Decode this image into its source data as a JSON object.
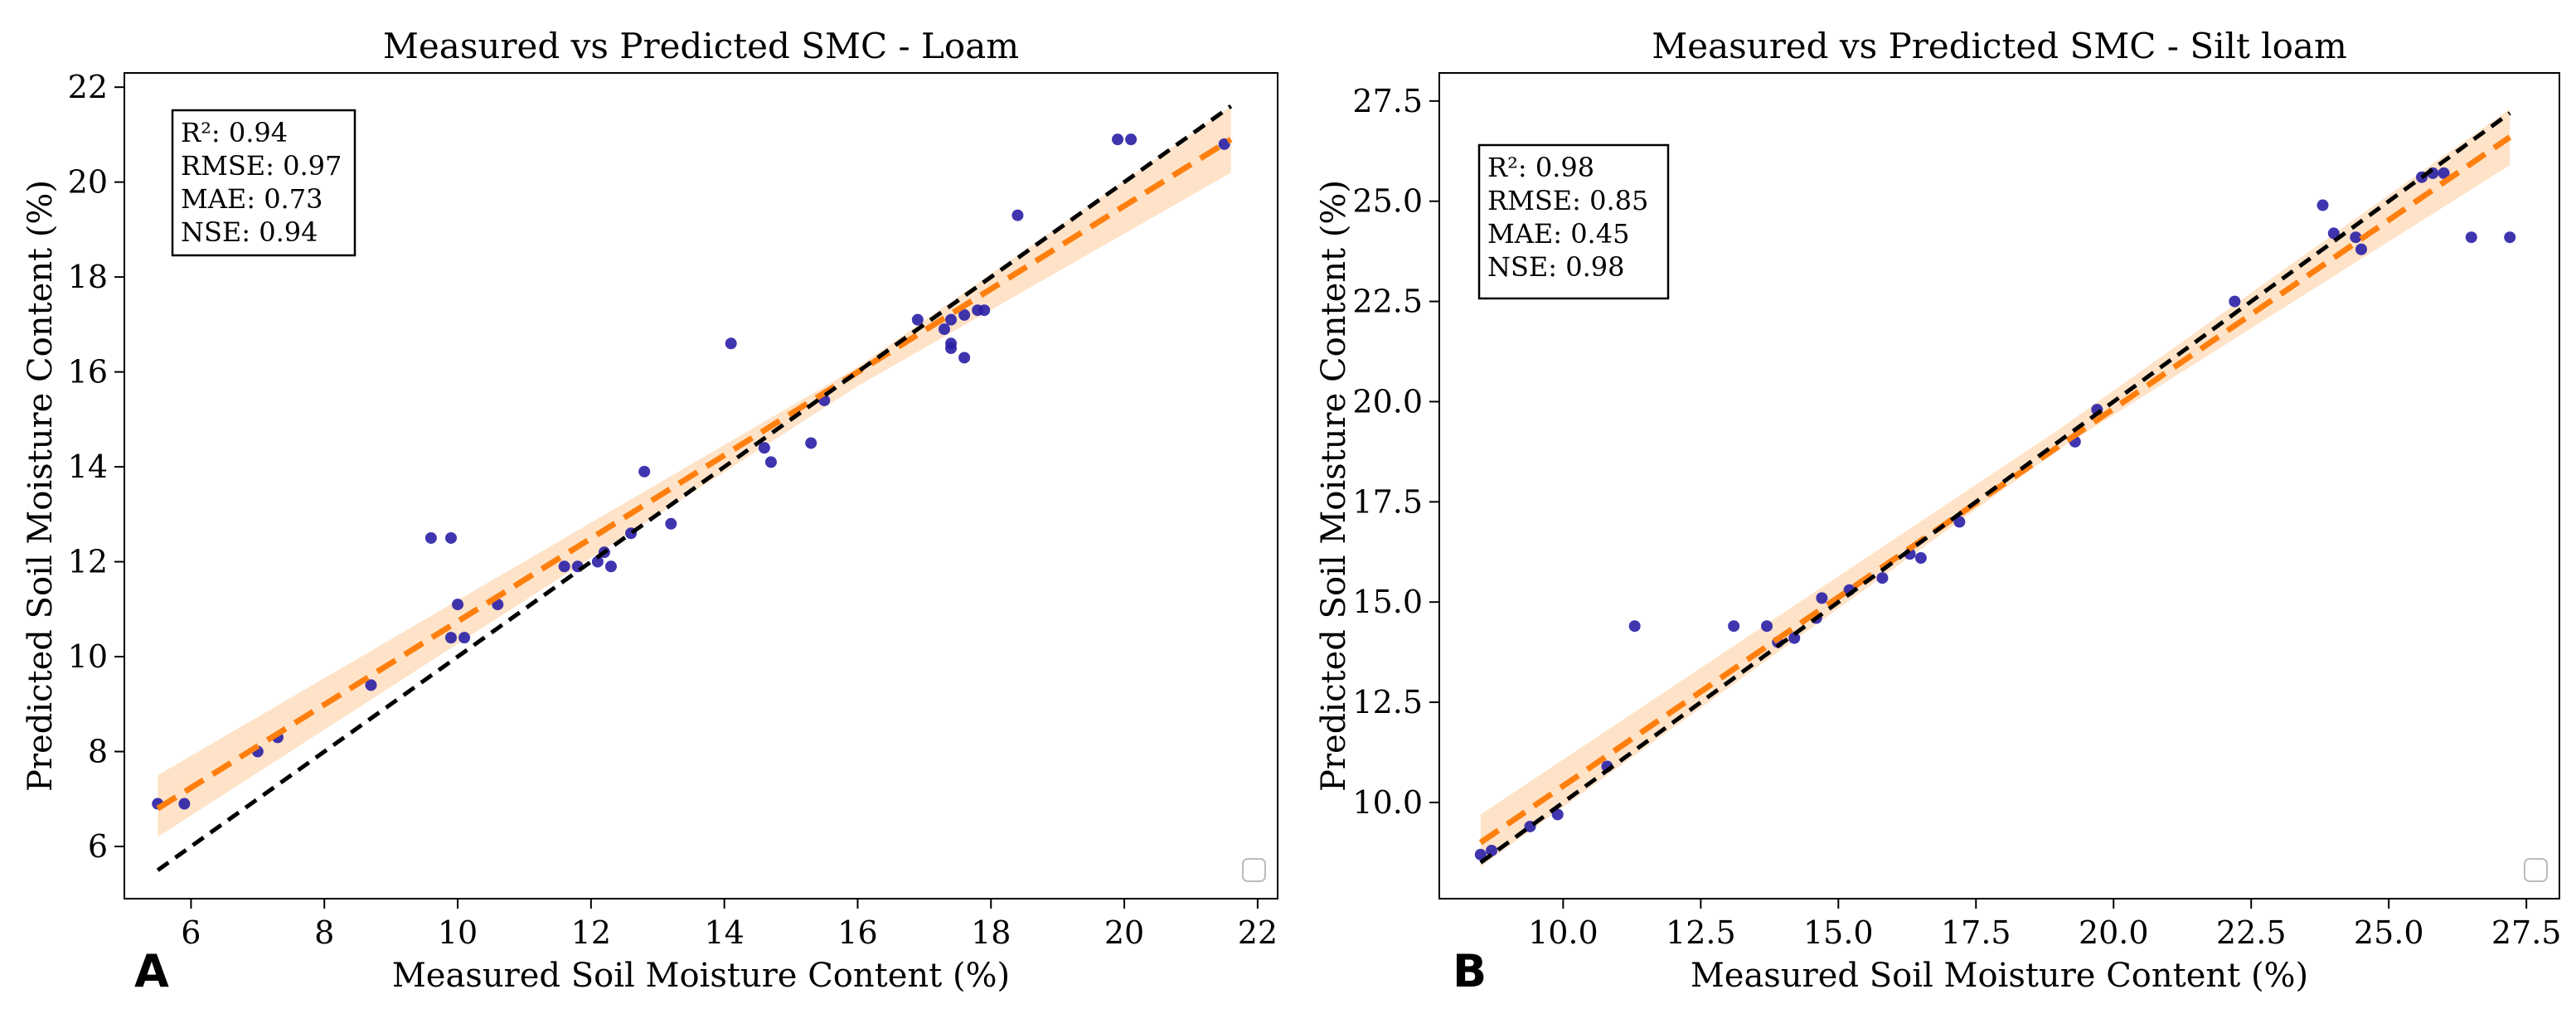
{
  "figure": {
    "colors": {
      "points": "#2a1fa6",
      "fit": "#ff7f0e",
      "band": "#fdd9b5",
      "identity": "#000000"
    }
  },
  "chart_data": [
    {
      "type": "scatter",
      "panel_label": "A",
      "title": "Measured vs Predicted SMC - Loam",
      "xlabel": "Measured Soil Moisture Content (%)",
      "ylabel": "Predicted Soil Moisture Content (%)",
      "xlim": [
        5.0,
        22.3
      ],
      "ylim": [
        4.9,
        22.3
      ],
      "xticks": [
        6,
        8,
        10,
        12,
        14,
        16,
        18,
        20,
        22
      ],
      "yticks": [
        6,
        8,
        10,
        12,
        14,
        16,
        18,
        20,
        22
      ],
      "tick_decimals": 0,
      "metrics": [
        "R²: 0.94",
        "RMSE: 0.97",
        "MAE: 0.73",
        "NSE: 0.94"
      ],
      "points": {
        "x": [
          5.5,
          5.9,
          7.0,
          7.3,
          8.7,
          9.6,
          9.9,
          10.0,
          9.9,
          10.1,
          10.6,
          11.6,
          11.8,
          12.1,
          12.2,
          12.3,
          12.6,
          12.8,
          13.2,
          14.1,
          14.6,
          14.7,
          15.3,
          15.5,
          16.9,
          17.3,
          17.4,
          17.4,
          17.4,
          17.6,
          17.6,
          17.8,
          17.9,
          18.4,
          19.9,
          20.1,
          21.5
        ],
        "y": [
          6.9,
          6.9,
          8.0,
          8.3,
          9.4,
          12.5,
          12.5,
          11.1,
          10.4,
          10.4,
          11.1,
          11.9,
          11.9,
          12.0,
          12.2,
          11.9,
          12.6,
          13.9,
          12.8,
          16.6,
          14.4,
          14.1,
          14.5,
          15.4,
          17.1,
          16.9,
          17.1,
          16.6,
          16.5,
          16.3,
          17.2,
          17.3,
          17.3,
          19.3,
          20.9,
          20.9,
          20.8
        ]
      },
      "identity_line": {
        "x": [
          5.5,
          21.6
        ],
        "y": [
          5.5,
          21.6
        ]
      },
      "fit_line": {
        "x": [
          5.5,
          21.6
        ],
        "y": [
          6.8,
          20.9
        ]
      },
      "confidence_band": {
        "x": [
          5.5,
          16.0,
          21.6
        ],
        "lower": [
          6.2,
          15.7,
          20.2
        ],
        "upper": [
          7.5,
          16.1,
          21.6
        ]
      },
      "legend": {
        "location": "lower right",
        "entries": []
      }
    },
    {
      "type": "scatter",
      "panel_label": "B",
      "title": "Measured vs Predicted SMC - Silt loam",
      "xlabel": "Measured Soil Moisture Content (%)",
      "ylabel": "Predicted Soil Moisture Content (%)",
      "xlim": [
        7.75,
        28.1
      ],
      "ylim": [
        7.6,
        28.2
      ],
      "xticks": [
        10.0,
        12.5,
        15.0,
        17.5,
        20.0,
        22.5,
        25.0,
        27.5
      ],
      "yticks": [
        10.0,
        12.5,
        15.0,
        17.5,
        20.0,
        22.5,
        25.0,
        27.5
      ],
      "tick_decimals": 1,
      "metrics": [
        "R²: 0.98",
        "RMSE: 0.85",
        "MAE: 0.45",
        "NSE: 0.98"
      ],
      "points": {
        "x": [
          8.5,
          8.7,
          9.4,
          9.9,
          10.8,
          11.3,
          13.1,
          13.7,
          13.9,
          14.2,
          14.6,
          14.7,
          15.2,
          15.8,
          16.3,
          16.5,
          17.2,
          19.3,
          19.7,
          22.2,
          23.8,
          24.0,
          24.4,
          24.5,
          25.6,
          25.8,
          26.0,
          26.5,
          27.2
        ],
        "y": [
          8.7,
          8.8,
          9.4,
          9.7,
          10.9,
          14.4,
          14.4,
          14.4,
          14.0,
          14.1,
          14.6,
          15.1,
          15.3,
          15.6,
          16.2,
          16.1,
          17.0,
          19.0,
          19.8,
          22.5,
          24.9,
          24.2,
          24.1,
          23.8,
          25.6,
          25.7,
          25.7,
          24.1,
          24.1
        ]
      },
      "identity_line": {
        "x": [
          8.5,
          27.2
        ],
        "y": [
          8.5,
          27.2
        ]
      },
      "fit_line": {
        "x": [
          8.5,
          27.2
        ],
        "y": [
          9.0,
          26.6
        ]
      },
      "confidence_band": {
        "x": [
          8.5,
          19.0,
          27.2
        ],
        "lower": [
          8.4,
          18.8,
          25.9
        ],
        "upper": [
          9.7,
          19.3,
          27.3
        ]
      },
      "legend": {
        "location": "lower right",
        "entries": []
      }
    }
  ]
}
